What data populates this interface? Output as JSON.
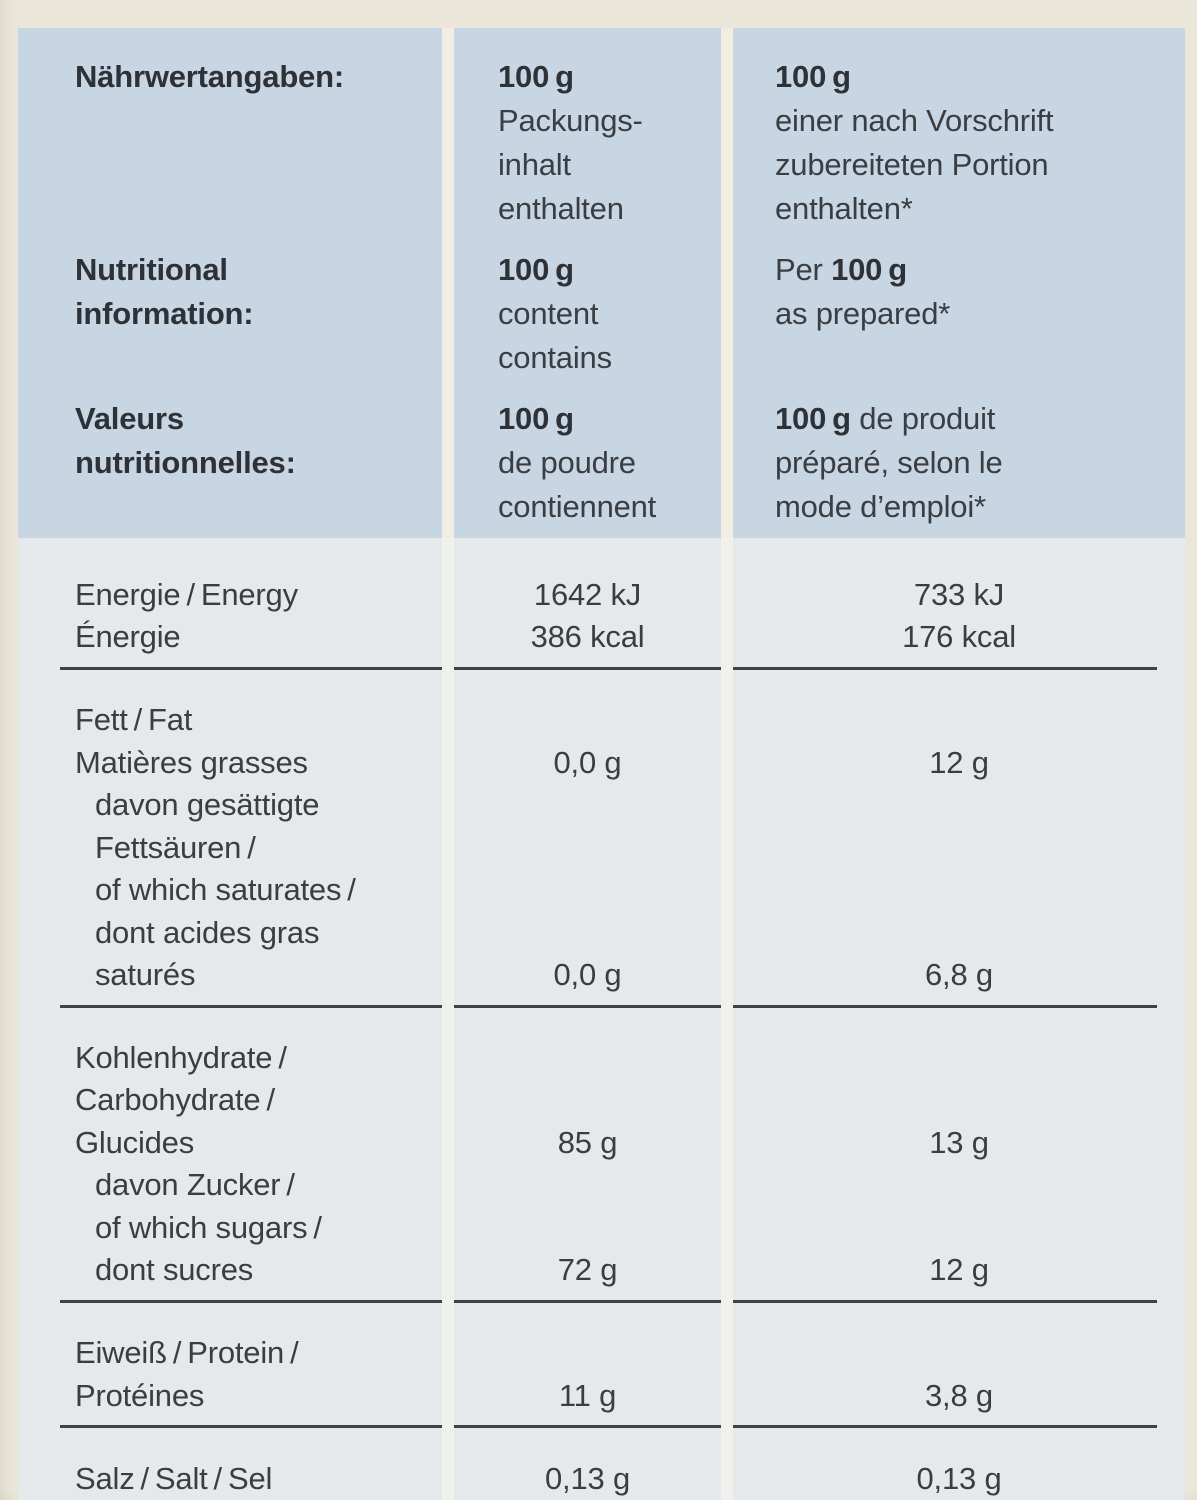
{
  "colors": {
    "page_background": "#eae6da",
    "header_background": "#c8d5e3",
    "body_background": "#e6e9ec",
    "text": "#3a3e42",
    "rule": "#3e4247"
  },
  "header": {
    "groups": [
      {
        "label": "Nährwertangaben:",
        "col2": "**100 g**\nPackungs-\ninhalt\nenthalten",
        "col3": "**100 g**\neiner nach Vorschrift\nzubereiteten Portion\nenthalten*"
      },
      {
        "label": "Nutritional\ninformation:",
        "col2": "**100 g**\ncontent\ncontains",
        "col3": "Per **100 g**\nas prepared*"
      },
      {
        "label": "Valeurs\nnutritionnelles:",
        "col2": "**100 g**\nde poudre\ncontiennent",
        "col3": "**100 g** de produit\npréparé, selon le\nmode d’emploi*"
      }
    ]
  },
  "body": {
    "sections": [
      {
        "name": "energy",
        "lines": [
          {
            "label": "Energie / Energy",
            "v1": "1642 kJ",
            "v2": "733 kJ"
          },
          {
            "label": "Énergie",
            "v1": "386 kcal",
            "v2": "176 kcal"
          }
        ]
      },
      {
        "name": "fat",
        "lines": [
          {
            "label": "Fett / Fat"
          },
          {
            "label": "Matières grasses",
            "v1": "0,0 g",
            "v2": "12 g"
          },
          {
            "label": "davon gesättigte",
            "indent": true
          },
          {
            "label": "Fettsäuren /",
            "indent": true
          },
          {
            "label": "of which saturates /",
            "indent": true
          },
          {
            "label": "dont acides gras",
            "indent": true
          },
          {
            "label": "saturés",
            "indent": true,
            "v1": "0,0 g",
            "v2": "6,8 g"
          }
        ]
      },
      {
        "name": "carbohydrate",
        "lines": [
          {
            "label": "Kohlenhydrate /"
          },
          {
            "label": "Carbohydrate /"
          },
          {
            "label": "Glucides",
            "v1": "85 g",
            "v2": "13 g"
          },
          {
            "label": "davon Zucker /",
            "indent": true
          },
          {
            "label": "of which sugars /",
            "indent": true
          },
          {
            "label": "dont sucres",
            "indent": true,
            "v1": "72 g",
            "v2": "12 g"
          }
        ]
      },
      {
        "name": "protein",
        "lines": [
          {
            "label": "Eiweiß / Protein /"
          },
          {
            "label": "Protéines",
            "v1": "11 g",
            "v2": "3,8 g"
          }
        ]
      },
      {
        "name": "salt",
        "lines": [
          {
            "label": "Salz / Salt / Sel",
            "v1": "0,13 g",
            "v2": "0,13 g"
          }
        ]
      }
    ]
  }
}
